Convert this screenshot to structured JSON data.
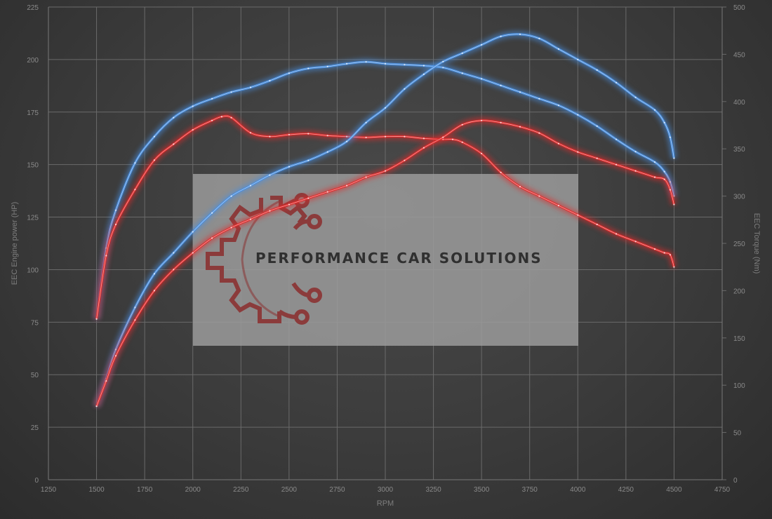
{
  "chart_data": {
    "type": "line",
    "xlabel": "RPM",
    "ylabel_left": "EEC Engine power (HP)",
    "ylabel_right": "EEC Torque (Nm)",
    "xlim": [
      1250,
      4750
    ],
    "ylim_left": [
      0,
      225
    ],
    "ylim_right": [
      0,
      500
    ],
    "x_ticks": [
      1250,
      1500,
      1750,
      2000,
      2250,
      2500,
      2750,
      3000,
      3250,
      3500,
      3750,
      4000,
      4250,
      4500,
      4750
    ],
    "y_left_ticks": [
      0,
      25,
      50,
      75,
      100,
      125,
      150,
      175,
      200,
      225
    ],
    "y_right_ticks": [
      0,
      50,
      100,
      150,
      200,
      250,
      300,
      350,
      400,
      450,
      500
    ],
    "grid": true,
    "series": [
      {
        "axis": "right",
        "color": "#4a8fe0",
        "x": [
          1500,
          1550,
          1600,
          1700,
          1800,
          1900,
          2000,
          2100,
          2200,
          2300,
          2400,
          2500,
          2600,
          2700,
          2800,
          2900,
          3000,
          3100,
          3200,
          3300,
          3400,
          3500,
          3600,
          3700,
          3800,
          3900,
          4000,
          4100,
          4200,
          4300,
          4400,
          4450,
          4480,
          4500
        ],
        "values": [
          170,
          245,
          285,
          335,
          363,
          383,
          395,
          403,
          410,
          415,
          422,
          430,
          435,
          437,
          440,
          442,
          440,
          439,
          438,
          436,
          430,
          424,
          417,
          410,
          403,
          396,
          386,
          374,
          360,
          347,
          336,
          326,
          315,
          300
        ]
      },
      {
        "axis": "right",
        "color": "#e02b2b",
        "x": [
          1500,
          1550,
          1600,
          1700,
          1800,
          1900,
          2000,
          2100,
          2150,
          2200,
          2300,
          2400,
          2500,
          2600,
          2700,
          2800,
          2900,
          3000,
          3100,
          3200,
          3300,
          3350,
          3400,
          3500,
          3600,
          3700,
          3800,
          3900,
          4000,
          4100,
          4200,
          4300,
          4400,
          4450,
          4480,
          4500
        ],
        "values": [
          170,
          237,
          270,
          307,
          338,
          355,
          370,
          380,
          384,
          383,
          367,
          363,
          365,
          366,
          364,
          363,
          362,
          363,
          363,
          361,
          360,
          360,
          357,
          345,
          325,
          310,
          300,
          290,
          280,
          270,
          260,
          252,
          244,
          240,
          238,
          225
        ]
      },
      {
        "axis": "left",
        "color": "#4a8fe0",
        "x": [
          1500,
          1550,
          1600,
          1700,
          1800,
          1900,
          2000,
          2100,
          2200,
          2300,
          2400,
          2500,
          2600,
          2700,
          2800,
          2900,
          3000,
          3100,
          3200,
          3300,
          3400,
          3500,
          3600,
          3700,
          3800,
          3900,
          4000,
          4100,
          4200,
          4300,
          4400,
          4450,
          4480,
          4500
        ],
        "values": [
          35,
          48,
          62,
          82,
          98,
          108,
          118,
          127,
          135,
          140,
          145,
          149,
          152,
          156,
          161,
          170,
          177,
          186,
          193,
          199,
          203,
          207,
          211,
          212,
          210,
          205,
          200,
          195,
          189,
          182,
          176,
          170,
          163,
          153
        ]
      },
      {
        "axis": "left",
        "color": "#e02b2b",
        "x": [
          1500,
          1550,
          1600,
          1700,
          1800,
          1900,
          2000,
          2100,
          2200,
          2300,
          2400,
          2500,
          2600,
          2700,
          2800,
          2900,
          3000,
          3100,
          3200,
          3300,
          3400,
          3500,
          3600,
          3700,
          3800,
          3900,
          4000,
          4100,
          4200,
          4300,
          4400,
          4450,
          4480,
          4500
        ],
        "values": [
          35,
          47,
          59,
          76,
          90,
          100,
          108,
          115,
          120,
          124,
          128,
          131,
          134,
          137,
          140,
          144,
          147,
          152,
          158,
          163,
          169,
          171,
          170,
          168,
          165,
          160,
          156,
          153,
          150,
          147,
          144,
          143,
          138,
          131
        ]
      }
    ]
  },
  "watermark": {
    "text": "PERFORMANCE CAR SOLUTIONS",
    "logo_icon": "gear-circuit-icon",
    "logo_color": "#8b2d2d",
    "panel_color": "#9b9b9b"
  }
}
